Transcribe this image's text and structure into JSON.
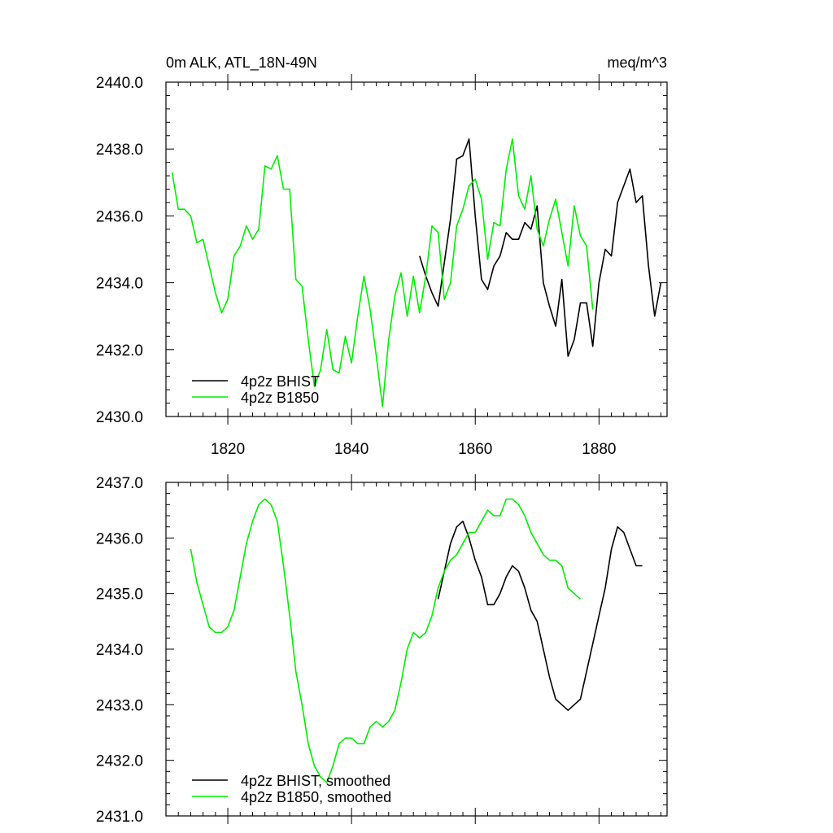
{
  "header": {
    "left_title": "0m ALK, ATL_18N-49N",
    "right_title": "meq/m^3"
  },
  "colors": {
    "bhist": "#000000",
    "b1850": "#00ee00",
    "axes": "#000000",
    "background": "#ffffff"
  },
  "chart_data": [
    {
      "type": "line",
      "title": "0m ALK, ATL_18N-49N",
      "units": "meq/m^3",
      "xlim": [
        1810,
        1891
      ],
      "ylim": [
        2430,
        2440
      ],
      "xticks": [
        1820,
        1840,
        1860,
        1880
      ],
      "xtick_labels": [
        "1820",
        "1840",
        "1860",
        "1880"
      ],
      "yticks": [
        2430,
        2432,
        2434,
        2436,
        2438,
        2440
      ],
      "ytick_labels": [
        "2430.0",
        "2432.0",
        "2434.0",
        "2436.0",
        "2438.0",
        "2440.0"
      ],
      "grid": false,
      "legend_position": "bottom-left",
      "series": [
        {
          "name": "4p2z BHIST",
          "color": "#000000",
          "x": [
            1851,
            1852,
            1853,
            1854,
            1855,
            1856,
            1857,
            1858,
            1859,
            1860,
            1861,
            1862,
            1863,
            1864,
            1865,
            1866,
            1867,
            1868,
            1869,
            1870,
            1871,
            1872,
            1873,
            1874,
            1875,
            1876,
            1877,
            1878,
            1879,
            1880,
            1881,
            1882,
            1883,
            1884,
            1885,
            1886,
            1887,
            1888,
            1889,
            1890
          ],
          "values": [
            2434.8,
            2434.2,
            2433.7,
            2433.3,
            2434.6,
            2435.9,
            2437.7,
            2437.8,
            2438.3,
            2436.0,
            2434.1,
            2433.8,
            2434.5,
            2434.8,
            2435.5,
            2435.3,
            2435.3,
            2435.8,
            2435.6,
            2436.3,
            2434.0,
            2433.3,
            2432.7,
            2434.1,
            2431.8,
            2432.3,
            2433.4,
            2433.4,
            2432.1,
            2434.0,
            2435.0,
            2434.8,
            2436.4,
            2436.9,
            2437.4,
            2436.4,
            2436.6,
            2434.5,
            2433.0,
            2434.0
          ]
        },
        {
          "name": "4p2z B1850",
          "color": "#00ee00",
          "x": [
            1811,
            1812,
            1813,
            1814,
            1815,
            1816,
            1817,
            1818,
            1819,
            1820,
            1821,
            1822,
            1823,
            1824,
            1825,
            1826,
            1827,
            1828,
            1829,
            1830,
            1831,
            1832,
            1833,
            1834,
            1835,
            1836,
            1837,
            1838,
            1839,
            1840,
            1841,
            1842,
            1843,
            1844,
            1845,
            1846,
            1847,
            1848,
            1849,
            1850,
            1851,
            1852,
            1853,
            1854,
            1855,
            1856,
            1857,
            1858,
            1859,
            1860,
            1861,
            1862,
            1863,
            1864,
            1865,
            1866,
            1867,
            1868,
            1869,
            1870,
            1871,
            1872,
            1873,
            1874,
            1875,
            1876,
            1877,
            1878,
            1879
          ],
          "values": [
            2437.3,
            2436.2,
            2436.2,
            2436.0,
            2435.2,
            2435.3,
            2434.5,
            2433.7,
            2433.1,
            2433.5,
            2434.8,
            2435.1,
            2435.7,
            2435.3,
            2435.6,
            2437.5,
            2437.4,
            2437.8,
            2436.8,
            2436.8,
            2434.1,
            2433.9,
            2432.3,
            2430.9,
            2431.4,
            2432.6,
            2431.4,
            2431.3,
            2432.4,
            2431.6,
            2433.0,
            2434.2,
            2433.2,
            2431.8,
            2430.3,
            2432.3,
            2433.6,
            2434.3,
            2433.0,
            2434.2,
            2433.1,
            2434.2,
            2435.7,
            2435.5,
            2433.5,
            2434.0,
            2435.7,
            2436.2,
            2436.9,
            2437.1,
            2436.5,
            2434.7,
            2435.8,
            2435.7,
            2437.4,
            2438.3,
            2436.6,
            2436.2,
            2437.2,
            2435.6,
            2435.1,
            2435.9,
            2436.5,
            2435.5,
            2434.5,
            2436.3,
            2435.4,
            2435.1,
            2433.2
          ]
        }
      ]
    },
    {
      "type": "line",
      "xlim": [
        1810,
        1891
      ],
      "ylim": [
        2431,
        2437
      ],
      "xticks": [
        1820,
        1840,
        1860,
        1880
      ],
      "xtick_labels": [],
      "yticks": [
        2431,
        2432,
        2433,
        2434,
        2435,
        2436,
        2437
      ],
      "ytick_labels": [
        "2431.0",
        "2432.0",
        "2433.0",
        "2434.0",
        "2435.0",
        "2436.0",
        "2437.0"
      ],
      "grid": false,
      "legend_position": "bottom-left",
      "series": [
        {
          "name": "4p2z BHIST, smoothed",
          "color": "#000000",
          "x": [
            1854,
            1855,
            1856,
            1857,
            1858,
            1859,
            1860,
            1861,
            1862,
            1863,
            1864,
            1865,
            1866,
            1867,
            1868,
            1869,
            1870,
            1871,
            1872,
            1873,
            1874,
            1875,
            1876,
            1877,
            1878,
            1879,
            1880,
            1881,
            1882,
            1883,
            1884,
            1885,
            1886,
            1887
          ],
          "values": [
            2434.9,
            2435.4,
            2435.9,
            2436.2,
            2436.3,
            2436.0,
            2435.6,
            2435.3,
            2434.8,
            2434.8,
            2435.0,
            2435.3,
            2435.5,
            2435.4,
            2435.1,
            2434.7,
            2434.5,
            2434.0,
            2433.5,
            2433.1,
            2433.0,
            2432.9,
            2433.0,
            2433.1,
            2433.6,
            2434.1,
            2434.6,
            2435.1,
            2435.8,
            2436.2,
            2436.1,
            2435.8,
            2435.5,
            2435.5
          ]
        },
        {
          "name": "4p2z B1850, smoothed",
          "color": "#00ee00",
          "x": [
            1814,
            1815,
            1816,
            1817,
            1818,
            1819,
            1820,
            1821,
            1822,
            1823,
            1824,
            1825,
            1826,
            1827,
            1828,
            1829,
            1830,
            1831,
            1832,
            1833,
            1834,
            1835,
            1836,
            1837,
            1838,
            1839,
            1840,
            1841,
            1842,
            1843,
            1844,
            1845,
            1846,
            1847,
            1848,
            1849,
            1850,
            1851,
            1852,
            1853,
            1854,
            1855,
            1856,
            1857,
            1858,
            1859,
            1860,
            1861,
            1862,
            1863,
            1864,
            1865,
            1866,
            1867,
            1868,
            1869,
            1870,
            1871,
            1872,
            1873,
            1874,
            1875,
            1876,
            1877
          ],
          "values": [
            2435.8,
            2435.2,
            2434.8,
            2434.4,
            2434.3,
            2434.3,
            2434.4,
            2434.7,
            2435.3,
            2435.9,
            2436.3,
            2436.6,
            2436.7,
            2436.6,
            2436.3,
            2435.5,
            2434.6,
            2433.6,
            2433.0,
            2432.3,
            2431.9,
            2431.7,
            2431.6,
            2431.9,
            2432.3,
            2432.4,
            2432.4,
            2432.3,
            2432.3,
            2432.6,
            2432.7,
            2432.6,
            2432.7,
            2432.9,
            2433.4,
            2434.0,
            2434.3,
            2434.2,
            2434.3,
            2434.6,
            2435.1,
            2435.4,
            2435.6,
            2435.7,
            2435.9,
            2436.1,
            2436.1,
            2436.3,
            2436.5,
            2436.4,
            2436.4,
            2436.7,
            2436.7,
            2436.6,
            2436.4,
            2436.1,
            2435.9,
            2435.7,
            2435.6,
            2435.6,
            2435.5,
            2435.1,
            2435.0,
            2434.9
          ]
        }
      ]
    }
  ]
}
